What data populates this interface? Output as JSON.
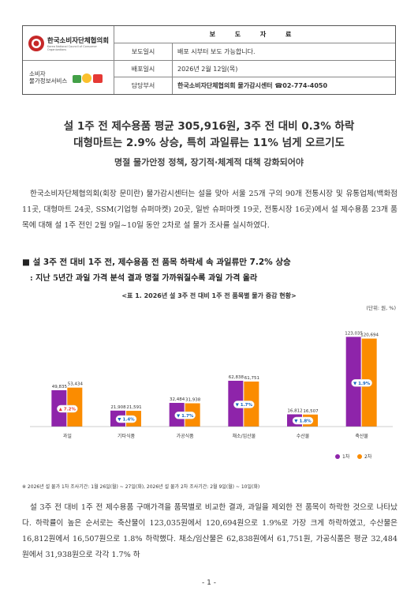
{
  "header": {
    "org_name": "한국소비자단체협의회",
    "org_name_en": "Korea National Council of Consumer Organizations",
    "center_name_line1": "소비자",
    "center_name_line2": "물가정보서비스",
    "doc_title": "보 도 자 료",
    "rows": [
      {
        "label": "보도일시",
        "value": "배포 시부터 보도 가능합니다."
      },
      {
        "label": "배포일시",
        "value": "2026년 2월 12일(목)"
      },
      {
        "label": "담당부서",
        "value": "한국소비자단체협의회 물가감시센터 ☎02-774-4050"
      }
    ]
  },
  "headline": {
    "line1": "설 1주 전 제수용품 평균 305,916원, 3주 전 대비 0.3% 하락",
    "line2": "대형마트는 2.9% 상승, 특히 과일류는 11% 넘게 오르기도",
    "subline": "명절 물가안정 정책, 장기적·체계적 대책 강화되어야"
  },
  "intro": "한국소비자단체협의회(회장 문미란) 물가감시센터는 설을 맞아 서울 25개 구의 90개 전통시장 및 유통업체(백화점 11곳, 대형마트 24곳, SSM(기업형 슈퍼마켓) 20곳, 일반 슈퍼마켓 19곳, 전통시장 16곳)에서 설 제수용품 23개 품목에 대해 설 1주 전인 2월 9일~10일 동안 2차로 설 물가 조사를 실시하였다.",
  "section": {
    "title": "■ 설 3주 전 대비 1주 전, 제수용품 전 품목 하락세 속 과일류만 7.2% 상승",
    "subtitle": ": 지난 5년간 과일 가격 분석 결과 명절 가까워질수록 과일 가격 올라"
  },
  "table_title": "<표 1. 2026년 설 3주 전 대비 1주 전 품목별 물가 증감 현황>",
  "unit": "(단위: 원, %)",
  "chart_data": {
    "type": "bar",
    "categories": [
      "과일",
      "기타식품",
      "가공식품",
      "채소/임산물",
      "수산물",
      "축산물"
    ],
    "series": [
      {
        "name": "1차",
        "values": [
          49835,
          21908,
          32484,
          62838,
          16812,
          123035
        ],
        "color": "#8e24aa"
      },
      {
        "name": "2차",
        "values": [
          53434,
          21591,
          31938,
          61751,
          16507,
          120694
        ],
        "color": "#fb8c00"
      }
    ],
    "value_labels": [
      [
        "49,835",
        "53,434"
      ],
      [
        "21,908",
        "21,591"
      ],
      [
        "32,484",
        "31,938"
      ],
      [
        "62,838",
        "61,751"
      ],
      [
        "16,812",
        "16,507"
      ],
      [
        "123,035",
        "120,694"
      ]
    ],
    "change_labels": [
      "▲ 7.2%",
      "▼ 1.4%",
      "▼ 1.7%",
      "▼ 1.7%",
      "▼ 1.8%",
      "▼ 1.9%"
    ],
    "change_colors": [
      "#e53935",
      "#1565c0",
      "#1565c0",
      "#1565c0",
      "#1565c0",
      "#1565c0"
    ],
    "ylim": [
      0,
      130000
    ],
    "legend": "bottom-right"
  },
  "footnote": "※ 2026년 설 물가 1차 조사기간: 1월 26일(월) ~ 27일(화), 2026년 설 물가 2차 조사기간: 2월 9일(월) ~ 10일(화)",
  "body2": "설 3주 전 대비 1주 전 제수용품 구매가격을 품목별로 비교한 결과, 과일을 제외한 전 품목이 하락한 것으로 나타났다. 하락률이 높은 순서로는 축산물이 123,035원에서 120,694원으로 1.9%로 가장 크게 하락하였고, 수산물은 16,812원에서 16,507원으로 1.8% 하락했다. 채소/임산물은 62,838원에서 61,751원, 가공식품은 평균 32,484원에서 31,938원으로 각각 1.7% 하",
  "page_number": "- 1 -"
}
